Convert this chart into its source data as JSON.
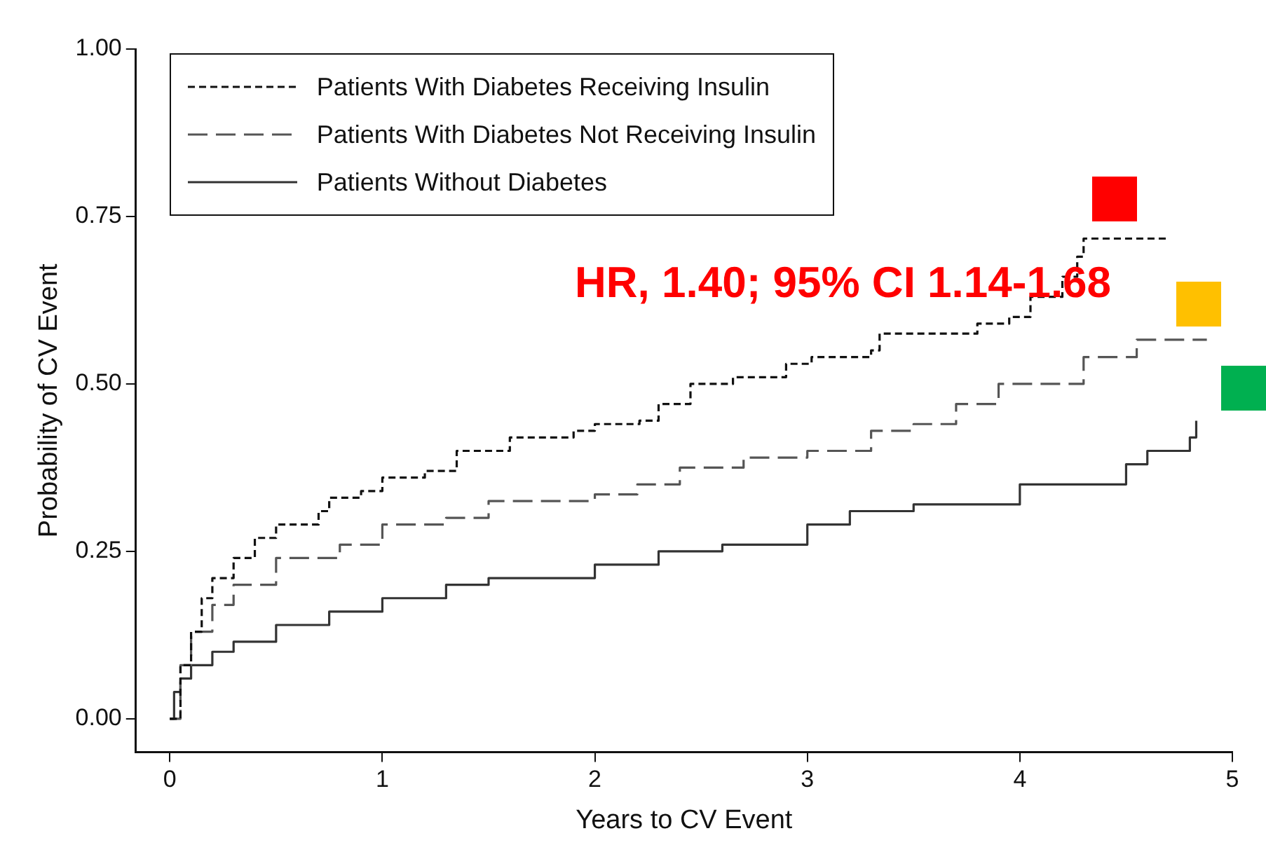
{
  "chart_data": {
    "type": "step",
    "xlabel": "Years to CV Event",
    "ylabel": "Probability of CV Event",
    "xlim": [
      -0.16,
      5
    ],
    "xticks": [
      0,
      1,
      2,
      3,
      4,
      5
    ],
    "ylim": [
      -0.05,
      1
    ],
    "yticks": [
      {
        "value": 0,
        "label": "0.00"
      },
      {
        "value": 0.25,
        "label": "0.25"
      },
      {
        "value": 0.5,
        "label": "0.50"
      },
      {
        "value": 0.75,
        "label": "0.75"
      },
      {
        "value": 1,
        "label": "1.00"
      }
    ],
    "grid": false,
    "legend": "top left",
    "marker": "none",
    "annotations": [
      "HR, 1.40; 95% CI 1.14-1.68"
    ],
    "series": [
      {
        "name": "Patients With Diabetes Receiving Insulin",
        "color": "#111111",
        "line_style": "dotted",
        "x": [
          0,
          0.05,
          0.1,
          0.15,
          0.2,
          0.3,
          0.4,
          0.5,
          0.7,
          0.75,
          0.9,
          1.0,
          1.2,
          1.35,
          1.6,
          1.9,
          2.0,
          2.21,
          2.3,
          2.45,
          2.65,
          2.9,
          3.02,
          3.3,
          3.34,
          3.65,
          3.8,
          3.95,
          4.05,
          4.2,
          4.27,
          4.3,
          4.69
        ],
        "values": [
          0,
          0.08,
          0.13,
          0.18,
          0.21,
          0.24,
          0.27,
          0.29,
          0.31,
          0.33,
          0.34,
          0.36,
          0.37,
          0.4,
          0.42,
          0.43,
          0.44,
          0.445,
          0.47,
          0.5,
          0.51,
          0.53,
          0.54,
          0.55,
          0.575,
          0.575,
          0.59,
          0.6,
          0.63,
          0.66,
          0.69,
          0.717,
          0.717
        ]
      },
      {
        "name": "Patients With Diabetes Not Receiving Insulin",
        "color": "#555555",
        "line_style": "dashed",
        "x": [
          0,
          0.05,
          0.1,
          0.2,
          0.3,
          0.5,
          0.8,
          1.0,
          1.3,
          1.5,
          2.0,
          2.2,
          2.4,
          2.7,
          3.0,
          3.3,
          3.5,
          3.7,
          3.9,
          4.3,
          4.55,
          4.88
        ],
        "values": [
          0,
          0.08,
          0.13,
          0.17,
          0.2,
          0.24,
          0.26,
          0.29,
          0.3,
          0.325,
          0.335,
          0.35,
          0.375,
          0.39,
          0.4,
          0.43,
          0.44,
          0.47,
          0.5,
          0.54,
          0.566,
          0.566
        ]
      },
      {
        "name": "Patients Without Diabetes",
        "color": "#333333",
        "line_style": "solid",
        "x": [
          0,
          0.02,
          0.05,
          0.1,
          0.2,
          0.3,
          0.5,
          0.75,
          1.0,
          1.3,
          1.5,
          2.0,
          2.3,
          2.6,
          3.0,
          3.2,
          3.5,
          4.0,
          4.5,
          4.6,
          4.8,
          4.83
        ],
        "values": [
          0,
          0.04,
          0.06,
          0.08,
          0.1,
          0.115,
          0.14,
          0.16,
          0.18,
          0.2,
          0.21,
          0.23,
          0.25,
          0.26,
          0.29,
          0.31,
          0.32,
          0.35,
          0.38,
          0.4,
          0.42,
          0.445
        ]
      }
    ]
  }
}
